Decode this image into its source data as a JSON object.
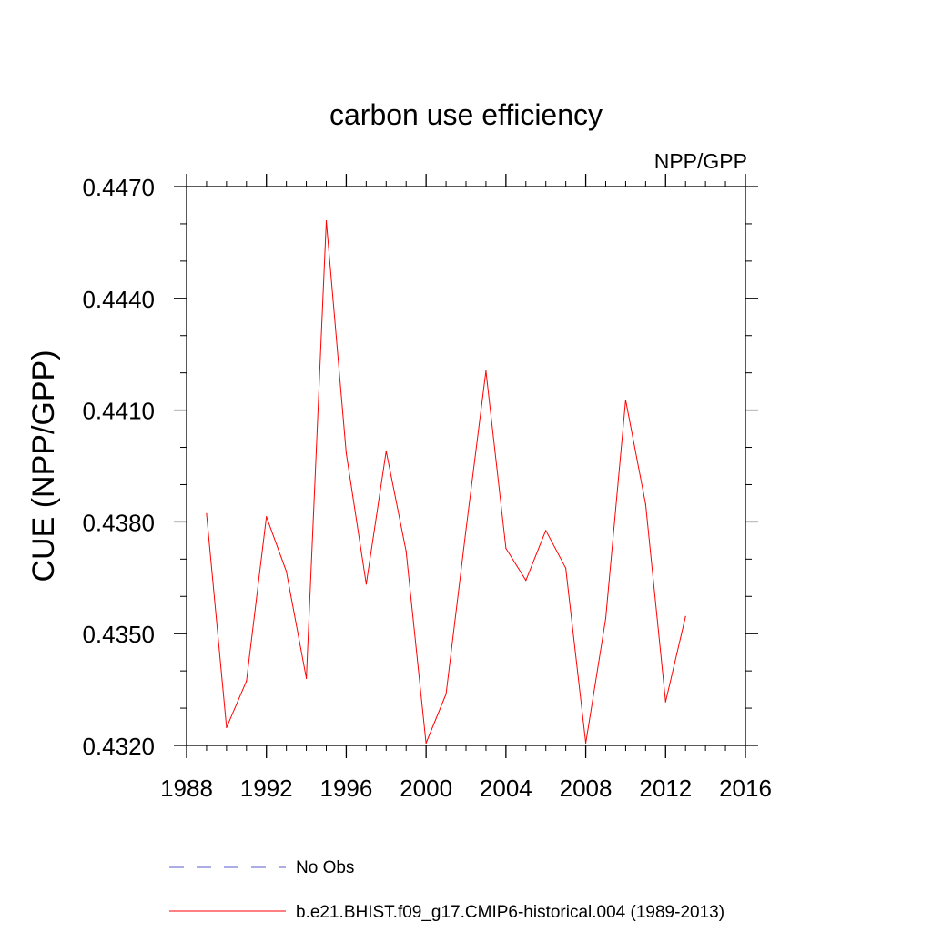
{
  "chart_data": {
    "type": "line",
    "title": "carbon use efficiency",
    "subtitle": "NPP/GPP",
    "xlabel": "",
    "ylabel": "CUE  (NPP/GPP)",
    "xlim": [
      1988,
      2016
    ],
    "ylim": [
      0.432,
      0.447
    ],
    "xticks": [
      1988,
      1992,
      1996,
      2000,
      2004,
      2008,
      2012,
      2016
    ],
    "xtick_labels": [
      "1988",
      "1992",
      "1996",
      "2000",
      "2004",
      "2008",
      "2012",
      "2016"
    ],
    "yticks": [
      0.432,
      0.435,
      0.438,
      0.441,
      0.444,
      0.447
    ],
    "ytick_labels": [
      "0.4320",
      "0.4350",
      "0.4380",
      "0.4410",
      "0.4440",
      "0.4470"
    ],
    "grid": false,
    "legend_position": "bottom",
    "series": [
      {
        "name": "No Obs",
        "style": "dashed",
        "color": "#7b7bd6",
        "x": [],
        "values": []
      },
      {
        "name": "b.e21.BHIST.f09_g17.CMIP6-historical.004 (1989-2013)",
        "style": "solid",
        "color": "#ff0000",
        "x": [
          1989,
          1990,
          1991,
          1992,
          1993,
          1994,
          1995,
          1996,
          1997,
          1998,
          1999,
          2000,
          2001,
          2002,
          2003,
          2004,
          2005,
          2006,
          2007,
          2008,
          2009,
          2010,
          2011,
          2012,
          2013
        ],
        "values": [
          0.43822,
          0.43248,
          0.43373,
          0.43814,
          0.43667,
          0.4338,
          0.44608,
          0.43985,
          0.43633,
          0.4399,
          0.43721,
          0.43206,
          0.43338,
          0.43779,
          0.44205,
          0.43729,
          0.43643,
          0.43777,
          0.43676,
          0.43206,
          0.43541,
          0.44127,
          0.43847,
          0.43317,
          0.43546
        ]
      }
    ]
  }
}
